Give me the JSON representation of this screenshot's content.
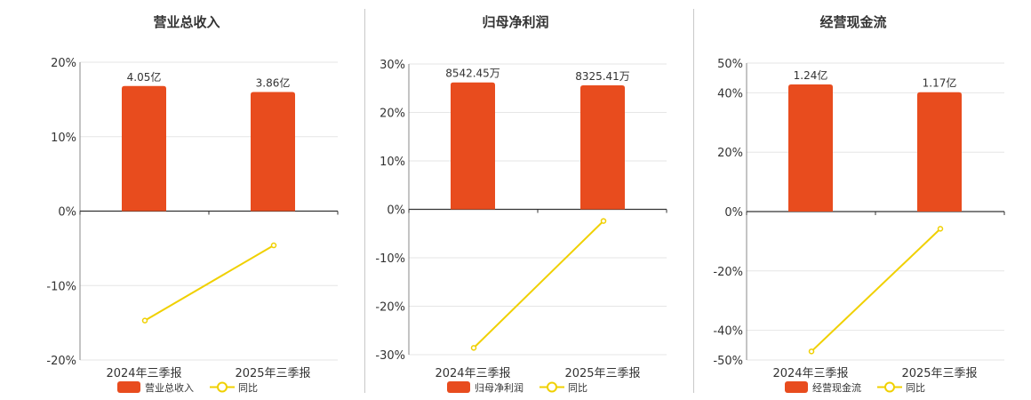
{
  "chart_data": [
    {
      "type": "bar",
      "title": "营业总收入",
      "categories": [
        "2024年三季报",
        "2025年三季报"
      ],
      "series": [
        {
          "name": "营业总收入",
          "type": "bar",
          "values": [
            16.8,
            16.0
          ],
          "labels": [
            "4.05亿",
            "3.86亿"
          ]
        },
        {
          "name": "同比",
          "type": "line",
          "values": [
            -14.7,
            -4.6
          ]
        }
      ],
      "ylim": [
        -20,
        20
      ],
      "yticks": [
        -20,
        -10,
        0,
        10,
        20
      ],
      "grid": true,
      "legend_position": "bottom"
    },
    {
      "type": "bar",
      "title": "归母净利润",
      "categories": [
        "2024年三季报",
        "2025年三季报"
      ],
      "series": [
        {
          "name": "归母净利润",
          "type": "bar",
          "values": [
            26.2,
            25.6
          ],
          "labels": [
            "8542.45万",
            "8325.41万"
          ]
        },
        {
          "name": "同比",
          "type": "line",
          "values": [
            -28.6,
            -2.4
          ]
        }
      ],
      "ylim": [
        -30,
        30
      ],
      "yticks": [
        -30,
        -20,
        -10,
        0,
        10,
        20,
        30
      ],
      "grid": true,
      "legend_position": "bottom"
    },
    {
      "type": "bar",
      "title": "经营现金流",
      "categories": [
        "2024年三季报",
        "2025年三季报"
      ],
      "series": [
        {
          "name": "经营现金流",
          "type": "bar",
          "values": [
            42.8,
            40.2
          ],
          "labels": [
            "1.24亿",
            "1.17亿"
          ]
        },
        {
          "name": "同比",
          "type": "line",
          "values": [
            -47.1,
            -5.8
          ]
        }
      ],
      "ylim": [
        -50,
        50
      ],
      "yticks": [
        -50,
        -40,
        -20,
        0,
        20,
        40,
        50
      ],
      "grid": true,
      "legend_position": "bottom"
    }
  ],
  "colors": {
    "bar": "#e84c1e",
    "line": "#f0d000",
    "grid": "#e6e6e6",
    "axis": "#333333",
    "text": "#333333"
  }
}
